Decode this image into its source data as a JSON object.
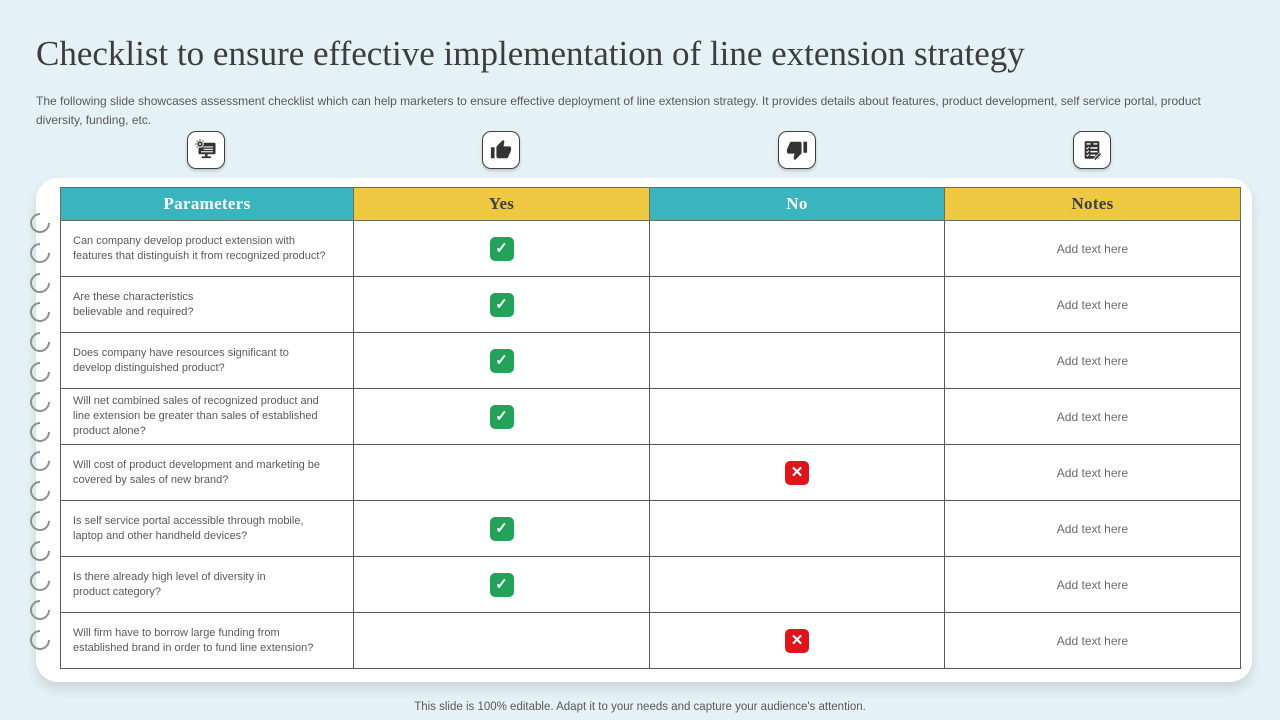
{
  "slide": {
    "title": "Checklist to ensure effective implementation of line extension strategy",
    "subtitle": "The following slide showcases assessment checklist which can help marketers to ensure effective deployment of line extension strategy. It provides details about features, product development, self service portal, product diversity, funding, etc.",
    "footer": "This slide is 100% editable.  Adapt it to your needs and capture your audience's attention."
  },
  "icons": [
    {
      "name": "computer-settings-icon"
    },
    {
      "name": "thumbs-up-icon"
    },
    {
      "name": "thumbs-down-icon"
    },
    {
      "name": "checklist-notes-icon"
    }
  ],
  "table": {
    "headers": [
      "Parameters",
      "Yes",
      "No",
      "Notes"
    ],
    "rows": [
      {
        "parameter": "Can company develop product extension with\nfeatures that distinguish it from recognized product?",
        "answer": "yes",
        "notes": "Add text here"
      },
      {
        "parameter": "Are these characteristics\nbelievable and required?",
        "answer": "yes",
        "notes": "Add text here"
      },
      {
        "parameter": "Does company have resources significant to\ndevelop distinguished product?",
        "answer": "yes",
        "notes": "Add text here"
      },
      {
        "parameter": "Will net combined sales of recognized product and\nline extension be greater than sales of established\nproduct alone?",
        "answer": "yes",
        "notes": "Add text here"
      },
      {
        "parameter": "Will cost of product development and marketing be\ncovered by sales of new brand?",
        "answer": "no",
        "notes": "Add text here"
      },
      {
        "parameter": "Is self service portal accessible through mobile,\nlaptop and other handheld devices?",
        "answer": "yes",
        "notes": "Add text here"
      },
      {
        "parameter": "Is there already high level of diversity in\nproduct category?",
        "answer": "yes",
        "notes": "Add text here"
      },
      {
        "parameter": "Will firm have to  borrow large funding from\nestablished brand in order to fund line extension?",
        "answer": "no",
        "notes": "Add text here"
      }
    ]
  },
  "colors": {
    "bg": "#e5f2f5",
    "teal": "#3ab4bf",
    "yellow": "#eec840",
    "green": "#22a358",
    "red": "#e0151c",
    "border": "#595959",
    "text": "#595959",
    "title": "#3d3d3d",
    "card": "#ffffff"
  }
}
